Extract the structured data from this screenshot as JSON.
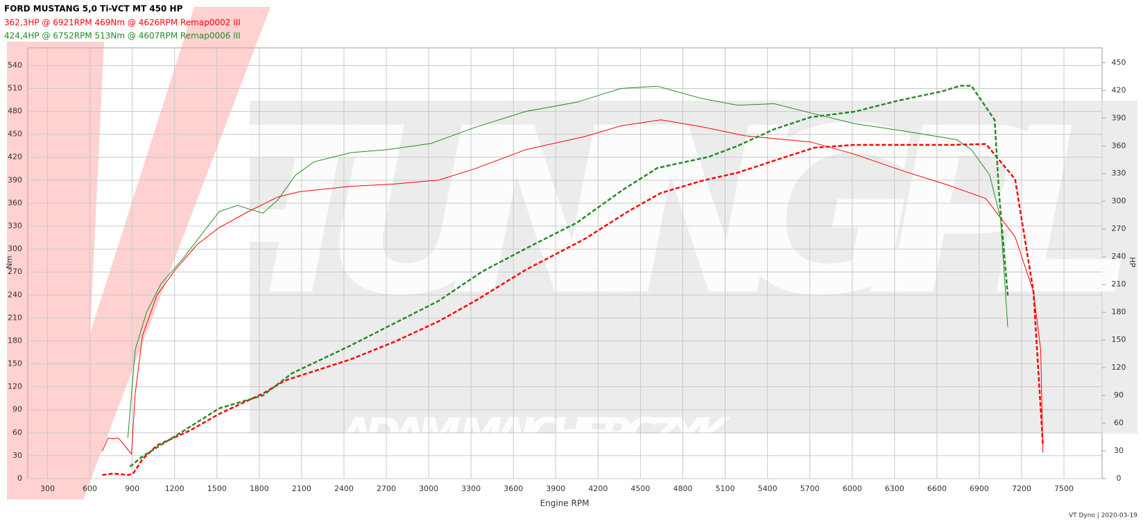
{
  "chart_data": {
    "type": "line",
    "title": "FORD MUSTANG 5,0 Ti-VCT MT 450 HP",
    "header_lines": [
      {
        "text": "362,3HP @  6921RPM  469Nm @ 4626RPM  Remap0002 III",
        "color": "#ff0000"
      },
      {
        "text": "424,4HP @  6752RPM  513Nm @ 4607RPM  Remap0006 III",
        "color": "#228b22"
      }
    ],
    "x_label": "Engine RPM",
    "y_label": "Nm",
    "y2_label": "HP",
    "footer": "VT Dyno | 2020-03-19",
    "watermark": [
      "-TUNING.PL",
      "ADAM MAJCHERCZYK"
    ],
    "grid": true,
    "xlim": [
      160,
      7770
    ],
    "xticks": [
      300,
      600,
      900,
      1200,
      1500,
      1800,
      2100,
      2400,
      2700,
      3000,
      3300,
      3600,
      3900,
      4200,
      4500,
      4800,
      5100,
      5400,
      5700,
      6000,
      6300,
      6600,
      6900,
      7200,
      7500
    ],
    "ylim": [
      0,
      563
    ],
    "yticks": [
      0,
      30,
      60,
      90,
      120,
      150,
      180,
      210,
      240,
      270,
      300,
      330,
      360,
      390,
      420,
      450,
      480,
      510,
      540
    ],
    "y2lim": [
      0,
      466
    ],
    "y2ticks": [
      0,
      30,
      60,
      90,
      120,
      150,
      180,
      210,
      240,
      270,
      300,
      330,
      360,
      390,
      420,
      450
    ],
    "series": [
      {
        "color": "#ff0000",
        "style": "solid",
        "axis": "y",
        "x": [
          688,
          729,
          766,
          802,
          843,
          895,
          921,
          973,
          1076,
          1205,
          1360,
          1516,
          1723,
          1930,
          2085,
          2447,
          2757,
          3068,
          3327,
          3689,
          4102,
          4361,
          4645,
          4930,
          5240,
          5706,
          6016,
          6378,
          6689,
          6947,
          7154,
          7284,
          7335,
          7351
        ],
        "values": [
          36,
          53,
          52,
          53,
          44,
          32,
          111,
          187,
          240,
          273,
          306,
          328,
          349,
          368,
          375,
          382,
          385,
          390,
          405,
          430,
          447,
          461,
          469,
          460,
          448,
          440,
          424,
          401,
          383,
          366,
          316,
          244,
          168,
          34
        ]
      },
      {
        "color": "#ff0000",
        "style": "dashed",
        "axis": "y2",
        "x": [
          688,
          766,
          869,
          905,
          973,
          1076,
          1309,
          1516,
          1826,
          1981,
          2447,
          2757,
          3068,
          3327,
          3689,
          4102,
          4412,
          4645,
          4930,
          5189,
          5447,
          5732,
          6016,
          6689,
          6947,
          7154,
          7284,
          7351
        ],
        "values": [
          4,
          5.5,
          4,
          5,
          21,
          36,
          52,
          70,
          92,
          106,
          129,
          148,
          170,
          192,
          226,
          259,
          289,
          309,
          322,
          331,
          344,
          358,
          361,
          361,
          362,
          324,
          202,
          36
        ]
      },
      {
        "color": "#228b22",
        "style": "solid",
        "axis": "y",
        "x": [
          869,
          921,
          999,
          1102,
          1257,
          1516,
          1645,
          1826,
          1930,
          2059,
          2188,
          2447,
          2705,
          3016,
          3327,
          3689,
          4051,
          4361,
          4620,
          4930,
          5189,
          5447,
          5706,
          6016,
          6378,
          6740,
          6844,
          6973,
          7051,
          7102
        ],
        "values": [
          53,
          168,
          216,
          254,
          287,
          349,
          357,
          347,
          364,
          397,
          414,
          426,
          430,
          438,
          459,
          480,
          492,
          510,
          513,
          497,
          488,
          490,
          478,
          464,
          454,
          443,
          430,
          397,
          340,
          198
        ]
      },
      {
        "color": "#228b22",
        "style": "dashed",
        "axis": "y2",
        "x": [
          884,
          973,
          1205,
          1516,
          1826,
          2033,
          2447,
          2757,
          3068,
          3379,
          3689,
          4051,
          4361,
          4620,
          4982,
          5189,
          5447,
          5706,
          6016,
          6327,
          6637,
          6766,
          6844,
          7009,
          7040,
          7102
        ],
        "values": [
          13,
          24,
          46,
          76,
          90,
          114,
          144,
          168,
          192,
          224,
          249,
          277,
          311,
          336,
          348,
          360,
          378,
          391,
          397,
          409,
          419,
          425,
          425,
          388,
          309,
          198
        ]
      }
    ]
  }
}
